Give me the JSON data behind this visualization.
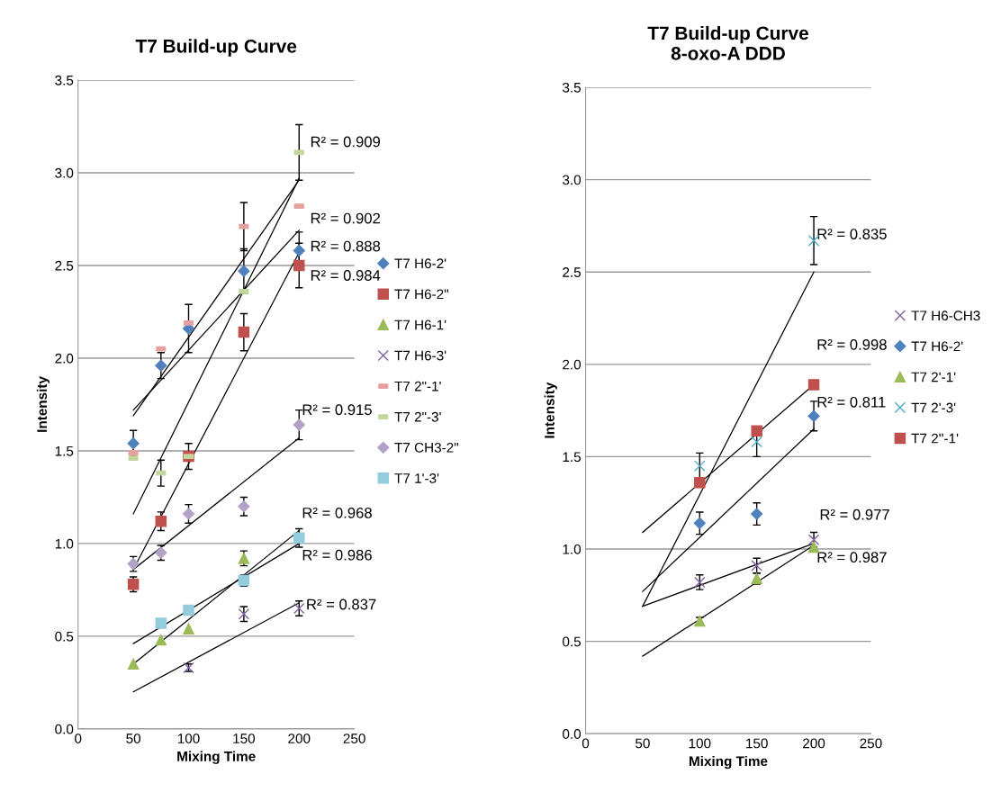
{
  "chart_data": [
    {
      "type": "scatter",
      "title": "T7 Build-up Curve",
      "xlabel": "Mixing Time",
      "ylabel": "Intensity",
      "xlim": [
        0,
        250
      ],
      "ylim": [
        0,
        3.5
      ],
      "xticks": [
        0,
        50,
        100,
        150,
        200,
        250
      ],
      "yticks": [
        {
          "value": 0,
          "label": "0.0"
        },
        {
          "value": 0.5,
          "label": "0.5"
        },
        {
          "value": 1,
          "label": "1.0"
        },
        {
          "value": 1.5,
          "label": "1.5"
        },
        {
          "value": 2,
          "label": "2.0"
        },
        {
          "value": 2.5,
          "label": "2.5"
        },
        {
          "value": 3,
          "label": "3.0"
        },
        {
          "value": 3.5,
          "label": "3.5"
        }
      ],
      "grid": "y",
      "legend": "right",
      "series": [
        {
          "name": "T7 H6-2'",
          "color": "#4f81bd",
          "marker": "diamond",
          "x": [
            50,
            75,
            100,
            150,
            200
          ],
          "values": [
            1.54,
            1.96,
            2.16,
            2.47,
            2.58
          ],
          "errors": [
            0.07,
            0.07,
            0.13,
            0.12,
            0.1
          ]
        },
        {
          "name": "T7 H6-2\"",
          "color": "#c0504d",
          "marker": "square",
          "x": [
            50,
            75,
            100,
            150,
            200
          ],
          "values": [
            0.78,
            1.12,
            1.47,
            2.14,
            2.5
          ],
          "errors": [
            0.04,
            0.05,
            0.07,
            0.1,
            0.12
          ]
        },
        {
          "name": "T7 H6-1'",
          "color": "#9bbb59",
          "marker": "triangle",
          "x": [
            50,
            75,
            100,
            150
          ],
          "values": [
            0.35,
            0.48,
            0.54,
            0.92
          ],
          "errors": [
            null,
            null,
            null,
            0.04
          ]
        },
        {
          "name": "T7 H6-3'",
          "color": "#8064a2",
          "marker": "cross",
          "x": [
            100,
            150,
            200
          ],
          "values": [
            0.33,
            0.62,
            0.65
          ],
          "errors": [
            0.02,
            0.04,
            0.04
          ]
        },
        {
          "name": "T7 2\"-1'",
          "color": "#e6a0a0",
          "x": [
            50,
            75,
            100,
            150,
            200
          ],
          "values": [
            1.49,
            2.05,
            2.19,
            2.71,
            2.82
          ],
          "errors": [
            null,
            null,
            null,
            0.13,
            null
          ]
        },
        {
          "name": "T7 2\"-3'",
          "color": "#c3d69b",
          "x": [
            50,
            75,
            100,
            150,
            200
          ],
          "values": [
            1.46,
            1.38,
            1.47,
            2.36,
            3.11
          ],
          "errors": [
            null,
            0.07,
            null,
            null,
            0.15
          ]
        },
        {
          "name": "T7 CH3-2\"",
          "color": "#b3a2c7",
          "marker": "diamond",
          "x": [
            50,
            75,
            100,
            150,
            200
          ],
          "values": [
            0.89,
            0.95,
            1.16,
            1.2,
            1.64
          ],
          "errors": [
            0.04,
            0.04,
            0.05,
            0.05,
            0.08
          ]
        },
        {
          "name": "T7 1'-3'",
          "color": "#93cddd",
          "marker": "square",
          "x": [
            75,
            100,
            150,
            200
          ],
          "values": [
            0.57,
            0.64,
            0.8,
            1.03
          ],
          "errors": [
            null,
            null,
            0.03,
            0.05
          ]
        },
        {
          "type": "line",
          "color": "#000000",
          "marker": "none",
          "x": [
            50,
            200
          ],
          "values": [
            1.69,
            2.96
          ]
        },
        {
          "type": "line",
          "color": "#000000",
          "marker": "none",
          "x": [
            50,
            200
          ],
          "values": [
            1.16,
            2.97
          ]
        },
        {
          "type": "line",
          "color": "#000000",
          "marker": "none",
          "x": [
            50,
            200
          ],
          "values": [
            1.72,
            2.69
          ]
        },
        {
          "type": "line",
          "color": "#000000",
          "marker": "none",
          "x": [
            50,
            200
          ],
          "values": [
            0.86,
            2.57
          ]
        },
        {
          "type": "line",
          "color": "#000000",
          "marker": "none",
          "x": [
            50,
            200
          ],
          "values": [
            0.86,
            1.57
          ]
        },
        {
          "type": "line",
          "color": "#000000",
          "marker": "none",
          "x": [
            50,
            200
          ],
          "values": [
            0.35,
            1.07
          ]
        },
        {
          "type": "line",
          "color": "#000000",
          "marker": "none",
          "x": [
            50,
            200
          ],
          "values": [
            0.46,
            1.0
          ]
        },
        {
          "type": "line",
          "color": "#000000",
          "marker": "none",
          "x": [
            50,
            200
          ],
          "values": [
            0.2,
            0.68
          ]
        }
      ],
      "annotations": [
        "R² = 0.909",
        "R² = 0.902",
        "R² = 0.888",
        "R² = 0.984",
        "R² = 0.915",
        "R² = 0.968",
        "R² = 0.986",
        "R² = 0.837"
      ]
    },
    {
      "type": "scatter",
      "title": "T7 Build-up Curve\n8-oxo-A DDD",
      "xlabel": "Mixing Time",
      "ylabel": "Intensity",
      "xlim": [
        0,
        250
      ],
      "ylim": [
        0,
        3.5
      ],
      "xticks": [
        0,
        50,
        100,
        150,
        200,
        250
      ],
      "yticks": [
        {
          "value": 0,
          "label": "0.0"
        },
        {
          "value": 0.5,
          "label": "0.5"
        },
        {
          "value": 1,
          "label": "1.0"
        },
        {
          "value": 1.5,
          "label": "1.5"
        },
        {
          "value": 2,
          "label": "2.0"
        },
        {
          "value": 2.5,
          "label": "2.5"
        },
        {
          "value": 3,
          "label": "3.0"
        },
        {
          "value": 3.5,
          "label": "3.5"
        }
      ],
      "grid": "y",
      "legend": "right",
      "series": [
        {
          "name": "T7 H6-CH3",
          "color": "#8064a2",
          "marker": "cross",
          "x": [
            100,
            150,
            200
          ],
          "values": [
            0.82,
            0.91,
            1.05
          ],
          "errors": [
            0.04,
            0.04,
            0.04
          ]
        },
        {
          "name": "T7 H6-2'",
          "color": "#4f81bd",
          "marker": "diamond",
          "x": [
            100,
            150,
            200
          ],
          "values": [
            1.14,
            1.19,
            1.72
          ],
          "errors": [
            0.06,
            0.06,
            0.08
          ]
        },
        {
          "name": "T7 2'-1'",
          "color": "#9bbb59",
          "marker": "triangle",
          "x": [
            100,
            150,
            200
          ],
          "values": [
            0.61,
            0.84,
            1.01
          ],
          "errors": [
            0.02,
            0.03,
            null
          ]
        },
        {
          "name": "T7 2'-3'",
          "color": "#4bacc6",
          "marker": "cross",
          "x": [
            100,
            150,
            200
          ],
          "values": [
            1.45,
            1.58,
            2.67
          ],
          "errors": [
            0.07,
            0.08,
            0.13
          ]
        },
        {
          "name": "T7 2''-1'",
          "color": "#c0504d",
          "marker": "square",
          "x": [
            100,
            150,
            200
          ],
          "values": [
            1.36,
            1.64,
            1.89
          ]
        },
        {
          "type": "line",
          "color": "#000000",
          "marker": "none",
          "x": [
            50,
            200
          ],
          "values": [
            0.69,
            2.5
          ]
        },
        {
          "type": "line",
          "color": "#000000",
          "marker": "none",
          "x": [
            50,
            200
          ],
          "values": [
            1.09,
            1.89
          ]
        },
        {
          "type": "line",
          "color": "#000000",
          "marker": "none",
          "x": [
            50,
            200
          ],
          "values": [
            0.77,
            1.65
          ]
        },
        {
          "type": "line",
          "color": "#000000",
          "marker": "none",
          "x": [
            50,
            200
          ],
          "values": [
            0.69,
            1.03
          ]
        },
        {
          "type": "line",
          "color": "#000000",
          "marker": "none",
          "x": [
            50,
            200
          ],
          "values": [
            0.42,
            1.02
          ]
        }
      ],
      "annotations": [
        "R² = 0.835",
        "R² = 0.998",
        "R² = 0.811",
        "R² = 0.977",
        "R² = 0.987"
      ]
    }
  ]
}
